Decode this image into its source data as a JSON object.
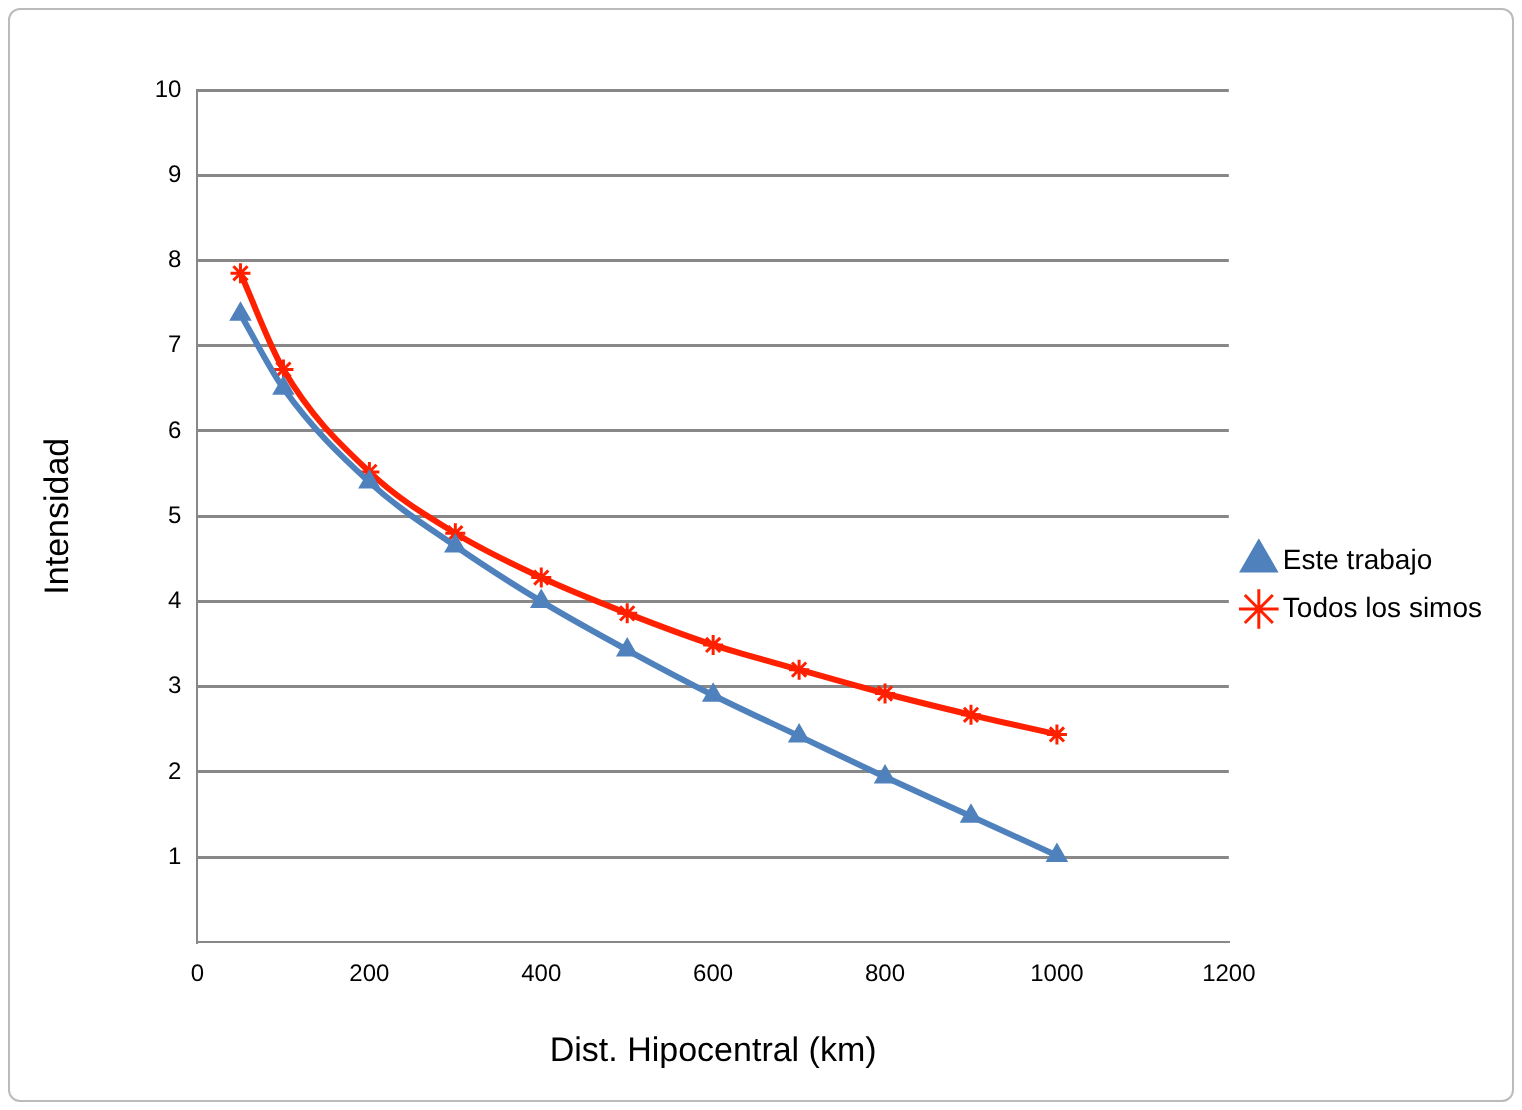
{
  "chart_data": {
    "type": "line",
    "xlabel": "Dist. Hipocentral (km)",
    "ylabel": "Intensidad",
    "x": [
      50,
      100,
      200,
      300,
      400,
      500,
      600,
      700,
      800,
      900,
      1000
    ],
    "xlim": [
      0,
      1200
    ],
    "xticks": [
      0,
      200,
      400,
      600,
      800,
      1000,
      1200
    ],
    "ylim": [
      0,
      10
    ],
    "yticks": [
      1,
      2,
      3,
      4,
      5,
      6,
      7,
      8,
      9,
      10
    ],
    "grid": "y",
    "legend": "right",
    "series": [
      {
        "name": "Este trabajo",
        "color": "#4f81bd",
        "marker": "triangle",
        "values": [
          7.37,
          6.5,
          5.4,
          4.65,
          4.0,
          3.43,
          2.9,
          2.42,
          1.94,
          1.48,
          1.02
        ]
      },
      {
        "name": "Todos los simos",
        "color": "#ff2000",
        "marker": "cross",
        "values": [
          7.85,
          6.72,
          5.52,
          4.8,
          4.28,
          3.86,
          3.49,
          3.2,
          2.92,
          2.67,
          2.44
        ]
      }
    ]
  }
}
